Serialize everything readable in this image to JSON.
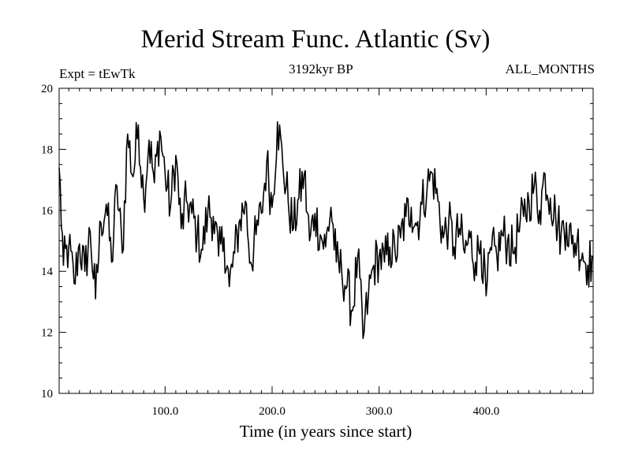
{
  "chart_data": {
    "type": "line",
    "title": "Merid Stream Func. Atlantic (Sv)",
    "subtitle_left": "Expt = tEwTk",
    "subtitle_center": "3192kyr BP",
    "subtitle_right": "ALL_MONTHS",
    "xlabel": "Time (in years since start)",
    "ylabel": "",
    "xlim": [
      1,
      500
    ],
    "ylim": [
      10,
      20
    ],
    "x_ticks": [
      100,
      200,
      300,
      400
    ],
    "x_tick_labels": [
      "100.0",
      "200.0",
      "300.0",
      "400.0"
    ],
    "y_ticks": [
      10,
      12,
      14,
      16,
      18,
      20
    ],
    "y_tick_labels": [
      "10",
      "12",
      "14",
      "16",
      "18",
      "20"
    ],
    "grid": false,
    "series": [
      {
        "name": "Atlantic meridional stream function",
        "color": "#000000",
        "x": [
          1,
          5,
          10,
          15,
          20,
          25,
          30,
          35,
          40,
          45,
          50,
          55,
          60,
          65,
          70,
          75,
          80,
          85,
          90,
          95,
          100,
          105,
          110,
          115,
          120,
          125,
          130,
          135,
          140,
          145,
          150,
          155,
          160,
          165,
          170,
          175,
          180,
          185,
          190,
          195,
          200,
          205,
          210,
          215,
          220,
          225,
          230,
          235,
          240,
          245,
          250,
          255,
          260,
          265,
          270,
          275,
          280,
          285,
          290,
          295,
          300,
          305,
          310,
          315,
          320,
          325,
          330,
          335,
          340,
          345,
          350,
          355,
          360,
          365,
          370,
          375,
          380,
          385,
          390,
          395,
          400,
          405,
          410,
          415,
          420,
          425,
          430,
          435,
          440,
          445,
          450,
          455,
          460,
          465,
          470,
          475,
          480,
          485,
          490,
          495,
          500
        ],
        "values": [
          17.4,
          14.2,
          14.8,
          13.6,
          14.9,
          14.0,
          15.3,
          13.1,
          15.6,
          16.2,
          14.3,
          16.8,
          14.6,
          18.5,
          17.1,
          18.8,
          16.4,
          18.3,
          16.9,
          18.6,
          17.2,
          16.1,
          17.8,
          15.4,
          16.3,
          15.9,
          15.2,
          14.7,
          16.0,
          15.8,
          14.5,
          15.1,
          13.5,
          14.6,
          15.7,
          16.3,
          14.3,
          15.2,
          15.9,
          17.6,
          16.1,
          18.9,
          17.5,
          16.3,
          15.4,
          16.4,
          17.2,
          15.0,
          15.9,
          15.2,
          14.8,
          16.1,
          14.3,
          14.0,
          13.5,
          12.7,
          14.5,
          11.8,
          13.2,
          14.2,
          14.5,
          14.3,
          14.8,
          14.6,
          15.1,
          15.8,
          16.1,
          15.5,
          16.2,
          16.8,
          17.2,
          16.3,
          15.1,
          15.6,
          14.8,
          15.4,
          14.6,
          15.1,
          14.3,
          15.0,
          13.2,
          14.7,
          14.5,
          15.2,
          15.0,
          14.6,
          15.3,
          15.8,
          16.3,
          16.8,
          16.0,
          17.2,
          16.4,
          15.8,
          15.2,
          15.6,
          14.9,
          15.0,
          14.6,
          14.2,
          14.5
        ]
      }
    ]
  }
}
